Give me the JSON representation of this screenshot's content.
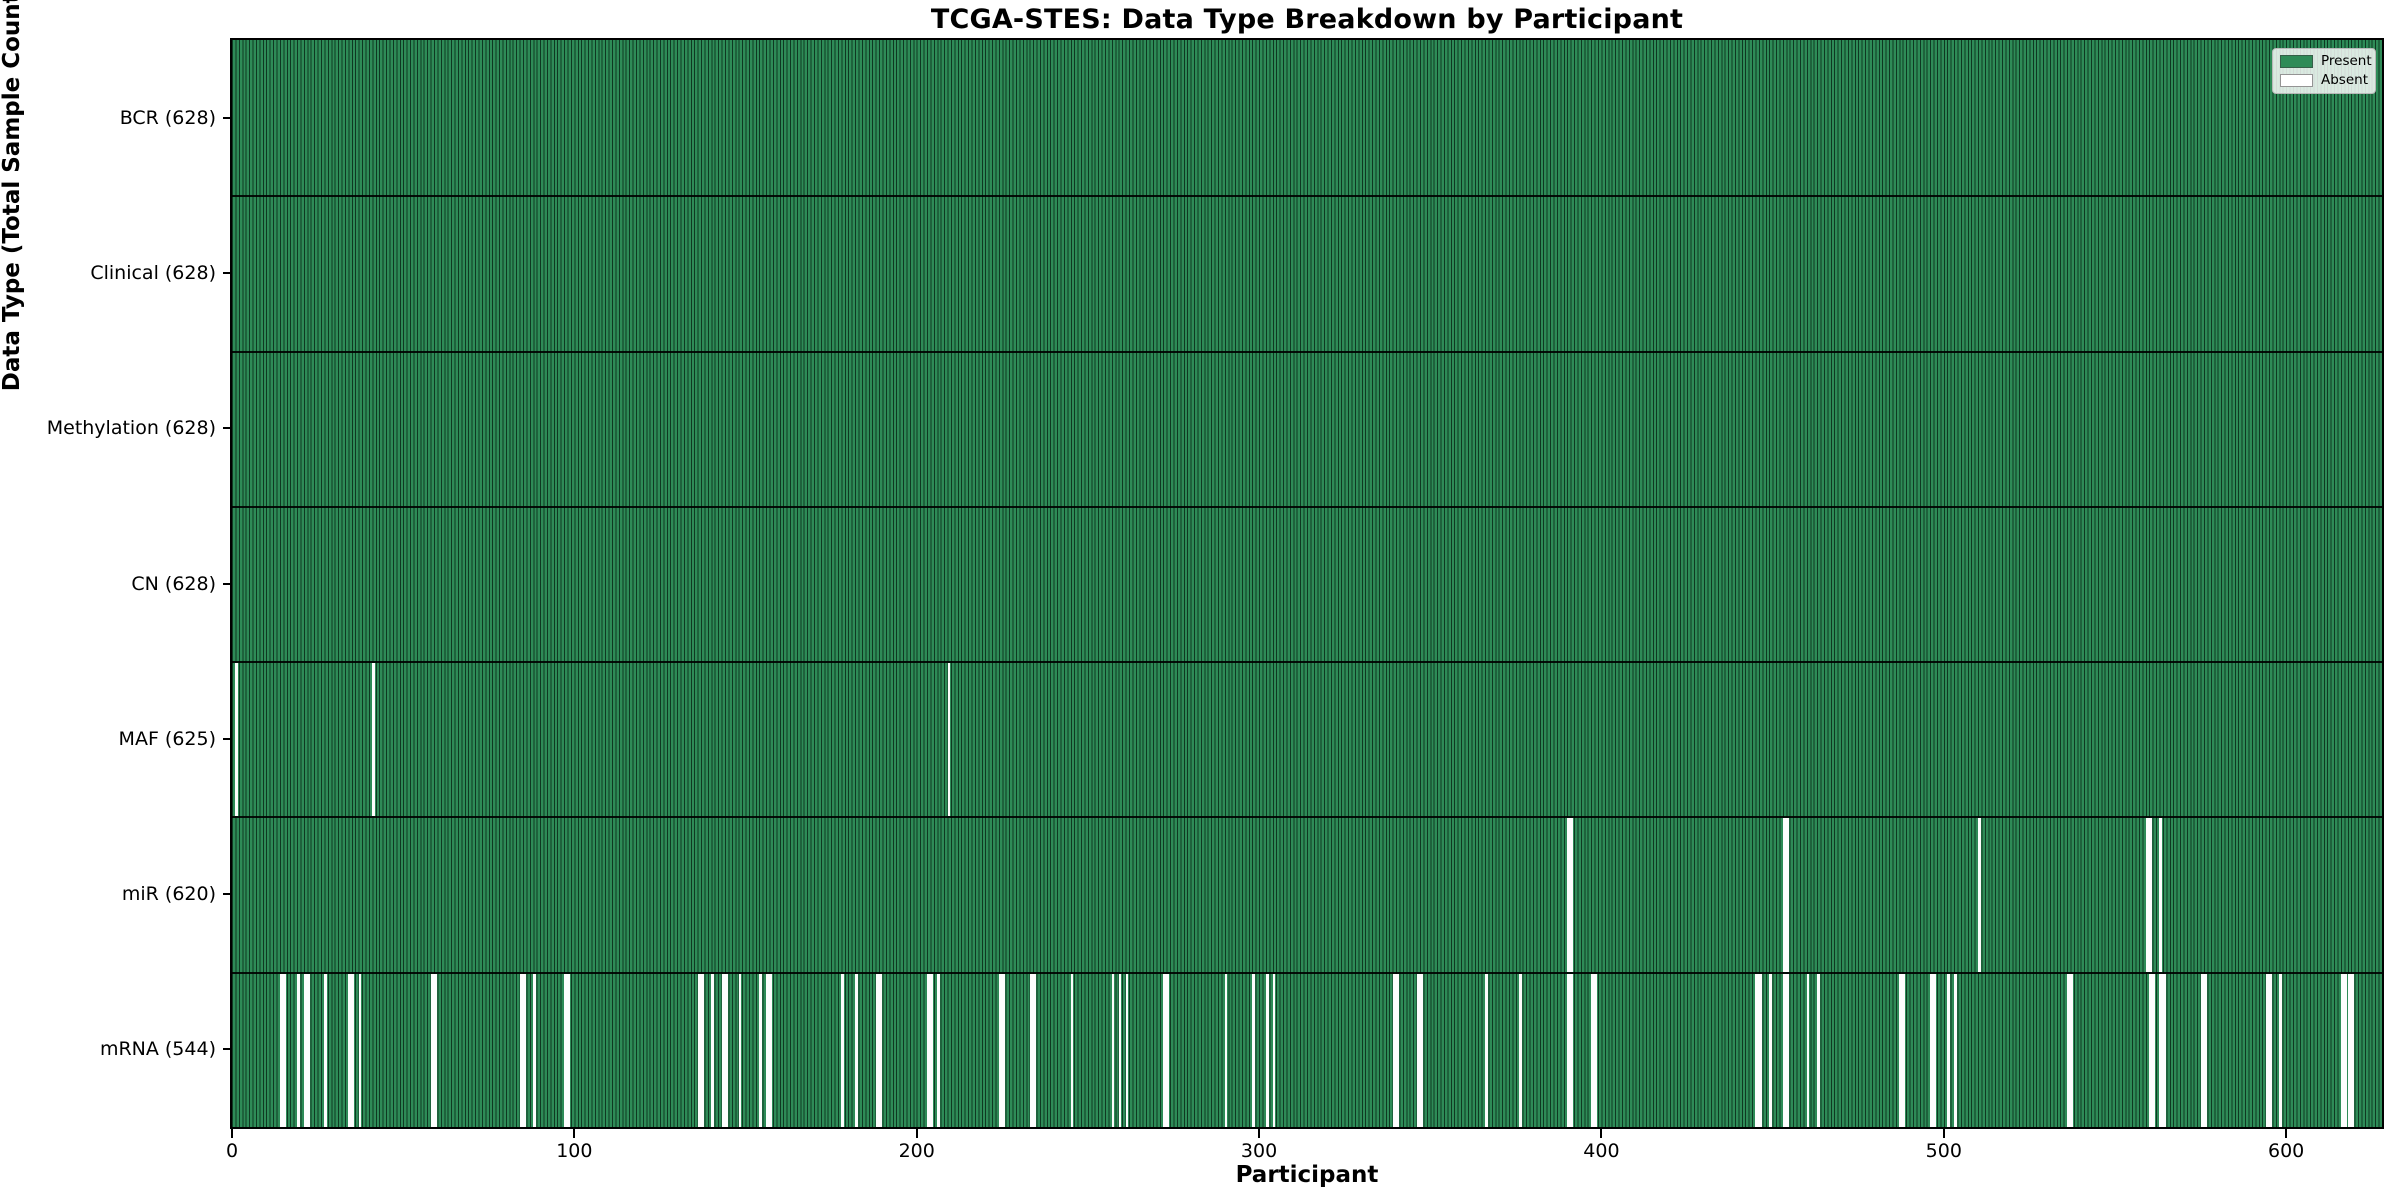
{
  "chart_data": {
    "type": "heatmap",
    "title": "TCGA-STES: Data Type Breakdown by Participant",
    "xlabel": "Participant",
    "ylabel": "Data Type (Total Sample Count)",
    "x_ticks": [
      0,
      100,
      200,
      300,
      400,
      500,
      600
    ],
    "x_range": [
      0,
      628
    ],
    "n_participants": 628,
    "grid": false,
    "colors": {
      "present": "#2e8b57",
      "absent": "#ffffff",
      "bar_edge": "#0a2a18",
      "row_separator": "#000000",
      "spine": "#000000"
    },
    "legend": {
      "position": "upper right",
      "entries": [
        {
          "label": "Present",
          "color": "#2e8b57"
        },
        {
          "label": "Absent",
          "color": "#ffffff"
        }
      ]
    },
    "rows": [
      {
        "data_type": "BCR",
        "total_count": 628,
        "label": "BCR (628)",
        "absent_ranges": []
      },
      {
        "data_type": "Clinical",
        "total_count": 628,
        "label": "Clinical (628)",
        "absent_ranges": []
      },
      {
        "data_type": "Methylation",
        "total_count": 628,
        "label": "Methylation (628)",
        "absent_ranges": []
      },
      {
        "data_type": "CN",
        "total_count": 628,
        "label": "CN (628)",
        "absent_ranges": []
      },
      {
        "data_type": "MAF",
        "total_count": 625,
        "label": "MAF (625)",
        "absent_ranges": [
          [
            1,
            1
          ],
          [
            41,
            1
          ],
          [
            209,
            1
          ]
        ]
      },
      {
        "data_type": "miR",
        "total_count": 620,
        "label": "miR (620)",
        "absent_ranges": [
          [
            390,
            2
          ],
          [
            453,
            2
          ],
          [
            510,
            1
          ],
          [
            559,
            2
          ],
          [
            563,
            1
          ]
        ]
      },
      {
        "data_type": "mRNA",
        "total_count": 544,
        "label": "mRNA (544)",
        "absent_ranges": [
          [
            14,
            2
          ],
          [
            19,
            1
          ],
          [
            21,
            2
          ],
          [
            27,
            1
          ],
          [
            34,
            2
          ],
          [
            37,
            1
          ],
          [
            58,
            2
          ],
          [
            84,
            2
          ],
          [
            88,
            1
          ],
          [
            97,
            2
          ],
          [
            136,
            2
          ],
          [
            140,
            1
          ],
          [
            143,
            2
          ],
          [
            148,
            1
          ],
          [
            154,
            1
          ],
          [
            156,
            2
          ],
          [
            178,
            1
          ],
          [
            182,
            1
          ],
          [
            188,
            2
          ],
          [
            203,
            2
          ],
          [
            206,
            1
          ],
          [
            224,
            2
          ],
          [
            233,
            2
          ],
          [
            245,
            1
          ],
          [
            257,
            1
          ],
          [
            259,
            1
          ],
          [
            261,
            1
          ],
          [
            272,
            2
          ],
          [
            290,
            1
          ],
          [
            298,
            1
          ],
          [
            302,
            1
          ],
          [
            304,
            1
          ],
          [
            339,
            2
          ],
          [
            346,
            2
          ],
          [
            366,
            1
          ],
          [
            376,
            1
          ],
          [
            390,
            2
          ],
          [
            397,
            2
          ],
          [
            445,
            2
          ],
          [
            449,
            1
          ],
          [
            453,
            2
          ],
          [
            460,
            1
          ],
          [
            463,
            1
          ],
          [
            487,
            2
          ],
          [
            496,
            2
          ],
          [
            501,
            1
          ],
          [
            503,
            1
          ],
          [
            536,
            2
          ],
          [
            560,
            2
          ],
          [
            563,
            2
          ],
          [
            575,
            2
          ],
          [
            594,
            2
          ],
          [
            598,
            1
          ],
          [
            616,
            2
          ],
          [
            618,
            2
          ]
        ]
      }
    ]
  }
}
